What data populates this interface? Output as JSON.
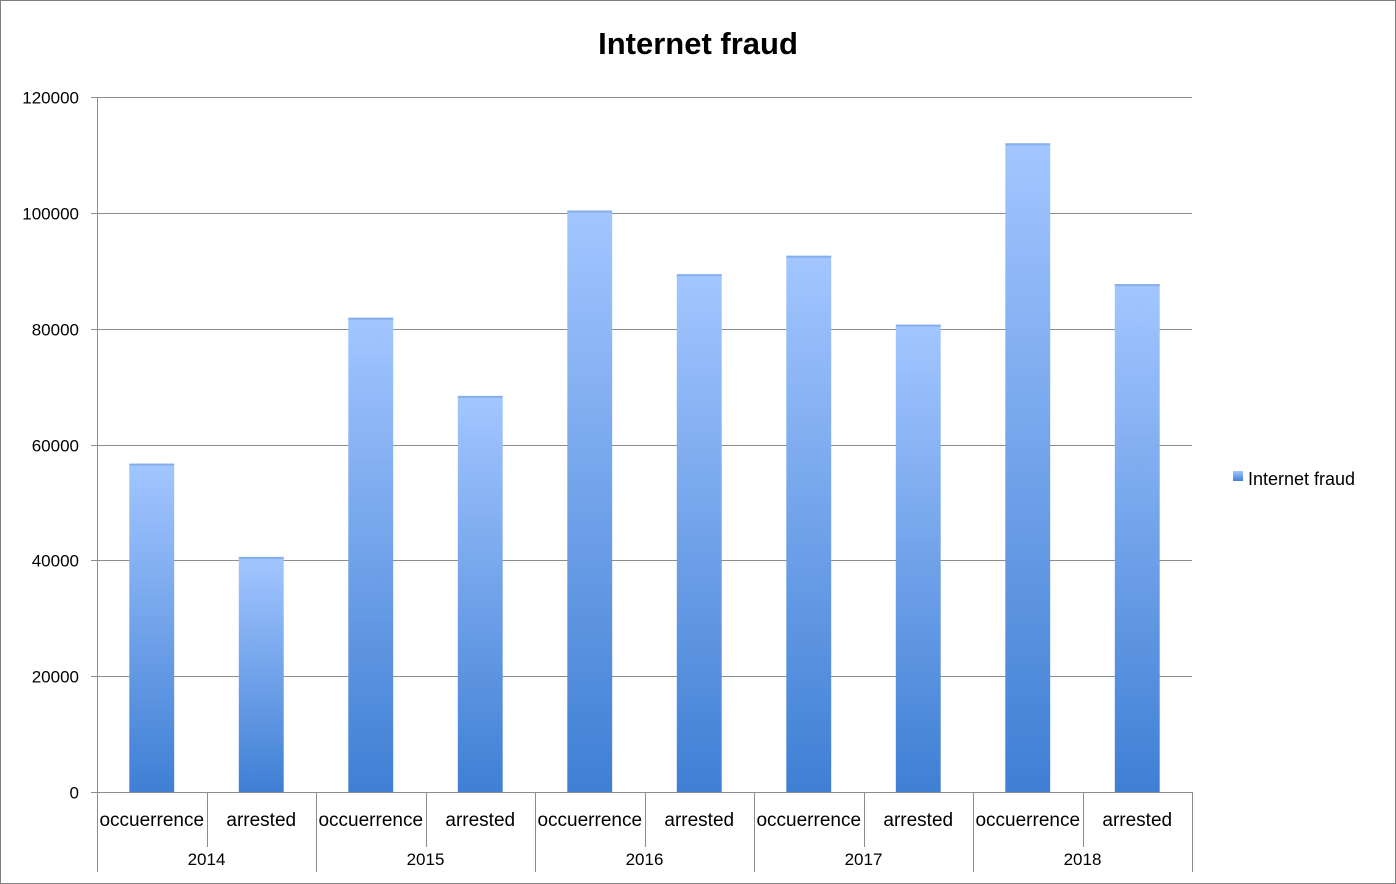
{
  "chart_data": {
    "type": "bar",
    "title": "Internet fraud",
    "xlabel": "",
    "ylabel": "",
    "ylim": [
      0,
      120000
    ],
    "y_ticks": [
      0,
      20000,
      40000,
      60000,
      80000,
      100000,
      120000
    ],
    "y_tick_labels": [
      "0",
      "20000",
      "40000",
      "60000",
      "80000",
      "100000",
      "120000"
    ],
    "groups": [
      "2014",
      "2015",
      "2016",
      "2017",
      "2018"
    ],
    "categories": [
      "occuerrence",
      "arrested",
      "occuerrence",
      "arrested",
      "occuerrence",
      "arrested",
      "occuerrence",
      "arrested",
      "occuerrence",
      "arrested"
    ],
    "series": [
      {
        "name": "Internet fraud",
        "values": [
          56700,
          40600,
          81900,
          68400,
          100400,
          89400,
          92600,
          80700,
          112000,
          87700
        ]
      }
    ],
    "grid": true,
    "legend": "right",
    "colors": {
      "bar_top": "#a3c6ff",
      "bar_bottom": "#3f7fd4",
      "grid": "#8c8c8c",
      "axis": "#8c8c8c"
    }
  }
}
